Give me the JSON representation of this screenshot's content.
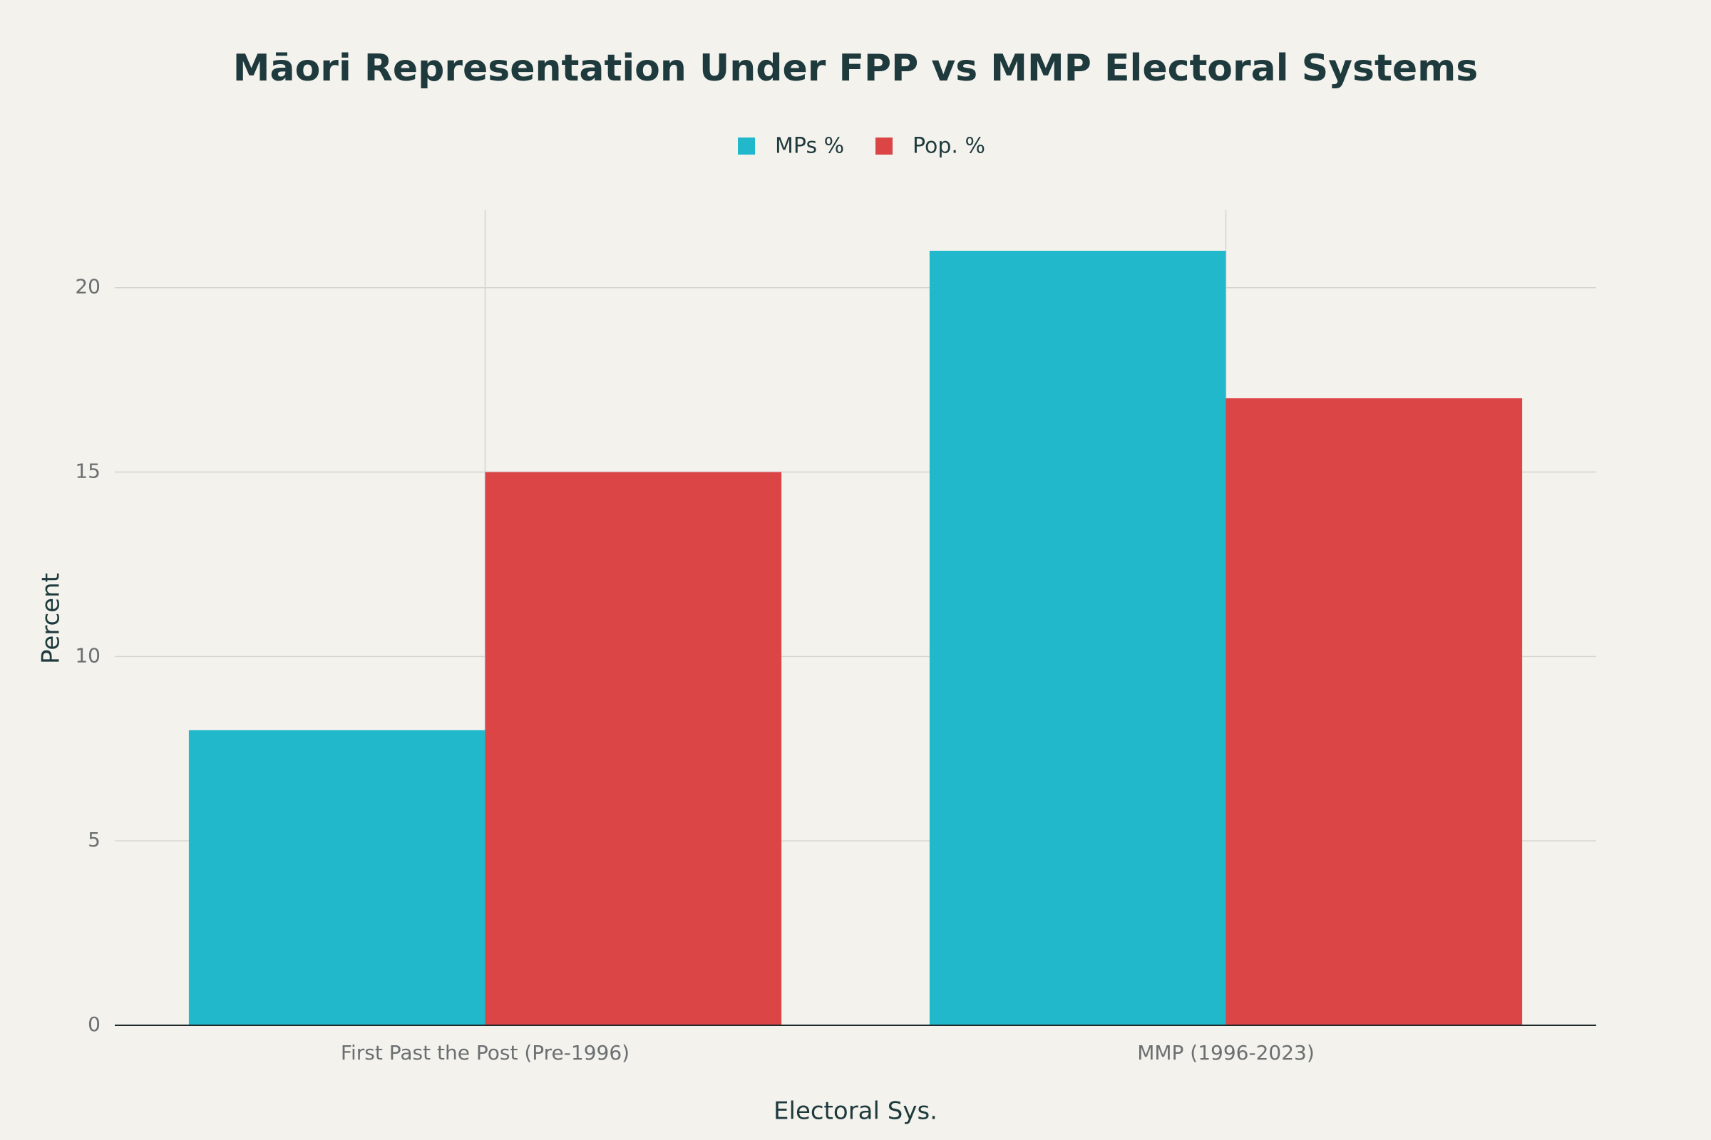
{
  "chart_data": {
    "type": "bar",
    "title": "Māori Representation Under FPP vs MMP Electoral Systems",
    "x_label": "Electoral Sys.",
    "y_label": "Percent",
    "categories": [
      "First Past the Post (Pre-1996)",
      "MMP (1996-2023)"
    ],
    "series": [
      {
        "name": "MPs %",
        "color": "#21b8cc",
        "values": [
          8,
          21
        ]
      },
      {
        "name": "Pop. %",
        "color": "#db4546",
        "values": [
          15,
          17
        ]
      }
    ],
    "ylim": [
      0,
      22.1
    ],
    "yticks": [
      0,
      5,
      10,
      15,
      20
    ],
    "grid": true,
    "legend": "top"
  }
}
